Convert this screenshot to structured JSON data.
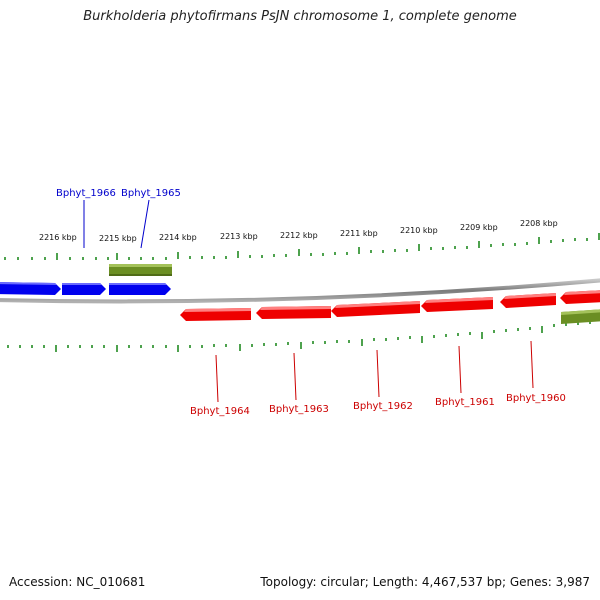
{
  "title": "Burkholderia phytofirmans PsJN chromosome 1, complete genome",
  "accession": "Accession: NC_010681",
  "summary": "Topology: circular; Length: 4,467,537 bp; Genes: 3,987",
  "colors": {
    "forward_gene": "#0000ee",
    "reverse_gene": "#ee0000",
    "other_feature": "#6b8e23",
    "ticks": "#228b22",
    "backbone": "#888888",
    "forward_label": "#0000cc",
    "reverse_label": "#cc0000"
  },
  "scale": {
    "labels": [
      "2216 kbp",
      "2215 kbp",
      "2214 kbp",
      "2213 kbp",
      "2212 kbp",
      "2211 kbp",
      "2210 kbp",
      "2209 kbp",
      "2208 kbp"
    ]
  },
  "genes": {
    "forward_labels": [
      "Bphyt_1966",
      "Bphyt_1965"
    ],
    "reverse_labels": [
      "Bphyt_1964",
      "Bphyt_1963",
      "Bphyt_1962",
      "Bphyt_1961",
      "Bphyt_1960"
    ]
  }
}
